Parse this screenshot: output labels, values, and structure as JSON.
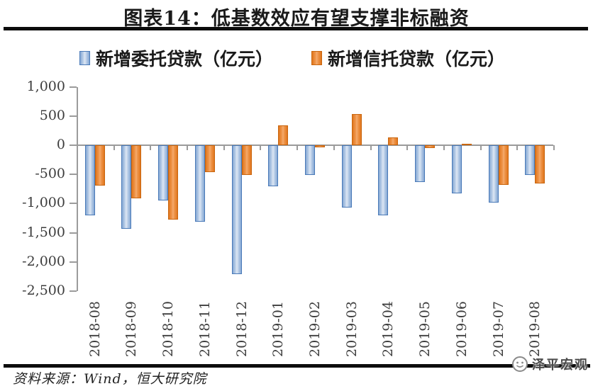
{
  "header": {
    "title": "图表14：低基数效应有望支撑非标融资"
  },
  "legend": {
    "items": [
      {
        "label": "新增委托贷款（亿元）",
        "series_key": "entrusted",
        "color": "#4f81bd"
      },
      {
        "label": "新增信托贷款（亿元）",
        "series_key": "trust",
        "color": "#e1761c"
      }
    ]
  },
  "chart_data": {
    "type": "bar",
    "title": "图表14：低基数效应有望支撑非标融资",
    "categories": [
      "2018-08",
      "2018-09",
      "2018-10",
      "2018-11",
      "2018-12",
      "2019-01",
      "2019-02",
      "2019-03",
      "2019-04",
      "2019-05",
      "2019-06",
      "2019-07",
      "2019-08"
    ],
    "series": [
      {
        "name": "新增委托贷款（亿元）",
        "key": "entrusted",
        "color": "#4f81bd",
        "values": [
          -1207,
          -1435,
          -949,
          -1311,
          -2210,
          -699,
          -508,
          -1070,
          -1197,
          -631,
          -827,
          -987,
          -513
        ]
      },
      {
        "name": "新增信托贷款（亿元）",
        "key": "trust",
        "color": "#e1761c",
        "values": [
          -688,
          -909,
          -1273,
          -467,
          -509,
          345,
          -37,
          528,
          129,
          -52,
          15,
          -676,
          -658
        ]
      }
    ],
    "xlabel": "",
    "ylabel": "",
    "ylim": [
      -2500,
      1000
    ],
    "y_ticks": [
      1000,
      500,
      0,
      -500,
      -1000,
      -1500,
      -2000,
      -2500
    ],
    "y_tick_labels": [
      "1,000",
      "500",
      "0",
      "-500",
      "-1,000",
      "-1,500",
      "-2,000",
      "-2,500"
    ],
    "grid": false,
    "legend_position": "top"
  },
  "footer": {
    "source": "资料来源：Wind，恒大研究院",
    "watermark": "泽平宏观"
  },
  "colors": {
    "bar_blue_border": "#4a7ab8",
    "bar_blue_edge": "#84a7d4",
    "bar_blue_center": "#dde7f4",
    "bar_orange_border": "#c9660f",
    "bar_orange_edge": "#e1761c",
    "bar_orange_center": "#f5ad72",
    "axis_gray": "#9b9b9b",
    "rule_black": "#0c0c0c",
    "watermark_gray": "#4a4a4a"
  }
}
